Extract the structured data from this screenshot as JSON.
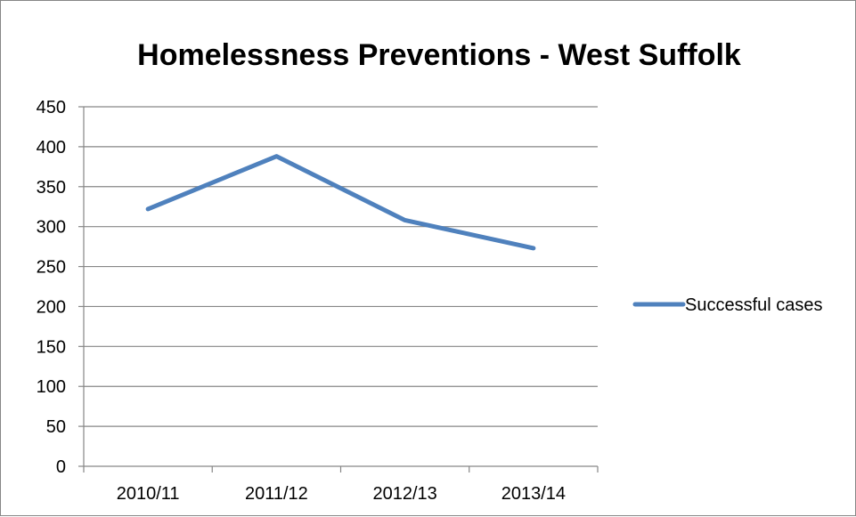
{
  "chart_data": {
    "type": "line",
    "title": "Homelessness Preventions - West Suffolk",
    "xlabel": "",
    "ylabel": "",
    "categories": [
      "2010/11",
      "2011/12",
      "2012/13",
      "2013/14"
    ],
    "series": [
      {
        "name": "Successful cases",
        "values": [
          322,
          388,
          308,
          273
        ],
        "color": "#4f81bd"
      }
    ],
    "ylim": [
      0,
      450
    ],
    "yticks": [
      0,
      50,
      100,
      150,
      200,
      250,
      300,
      350,
      400,
      450
    ],
    "ytick_labels": [
      "0",
      "50",
      "100",
      "150",
      "200",
      "250",
      "300",
      "350",
      "400",
      "450"
    ],
    "grid": "horizontal",
    "legend_position": "right"
  }
}
